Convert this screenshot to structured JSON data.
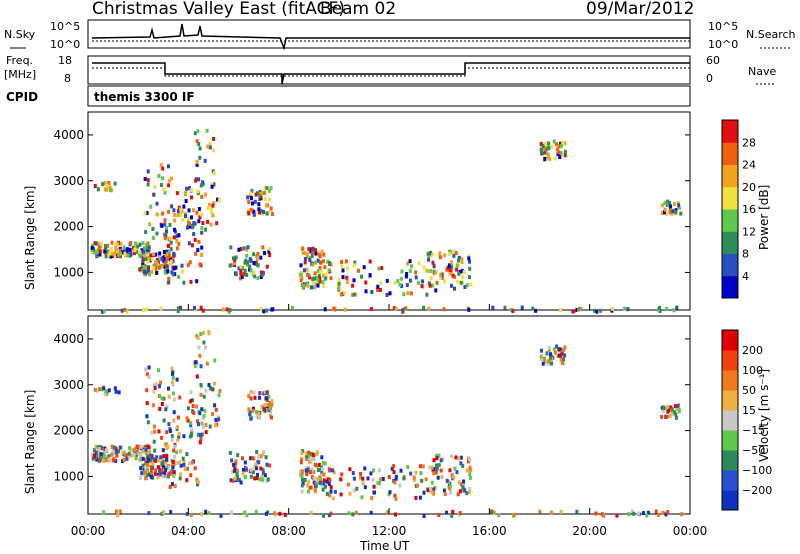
{
  "header": {
    "title": "Christmas Valley East (fitACF)",
    "beam": "Beam 02",
    "date": "09/Mar/2012"
  },
  "strips": {
    "nsky_label": "N.Sky",
    "nsky_ticks": [
      "10^5",
      "10^0"
    ],
    "nsearch_label": "N.Search",
    "nsearch_ticks": [
      "10^5",
      "10^0"
    ],
    "freq_label_1": "Freq.",
    "freq_label_2": "[MHz]",
    "freq_ticks": [
      "18",
      "8"
    ],
    "nave_label": "Nave",
    "nave_ticks": [
      "60",
      "0"
    ],
    "cpid_label": "CPID",
    "cpid_value": "themis 3300 IF"
  },
  "chart_data": [
    {
      "type": "heatmap",
      "title": "",
      "ylabel": "Slant Range [km]",
      "xlabel": "",
      "x_range_hours": [
        0,
        24
      ],
      "ylim": [
        180,
        4500
      ],
      "yticks": [
        "1000",
        "2000",
        "3000",
        "4000"
      ],
      "colorbar_label": "Power [dB]",
      "colorbar_ticks": [
        "4",
        "8",
        "12",
        "16",
        "20",
        "24",
        "28"
      ],
      "colorbar_colors": [
        "#0000c8",
        "#2a50c0",
        "#2e8c5a",
        "#60c84a",
        "#f0e040",
        "#f5a020",
        "#ee6010",
        "#e01010"
      ]
    },
    {
      "type": "heatmap",
      "title": "",
      "ylabel": "Slant Range [km]",
      "xlabel": "Time UT",
      "x_range_hours": [
        0,
        24
      ],
      "ylim": [
        180,
        4500
      ],
      "yticks": [
        "1000",
        "2000",
        "3000",
        "4000"
      ],
      "xticks": [
        "00:00",
        "04:00",
        "08:00",
        "12:00",
        "16:00",
        "20:00",
        "00:00"
      ],
      "colorbar_label": "Velocity [m s⁻¹]",
      "colorbar_ticks": [
        "200",
        "100",
        "50",
        "15",
        "−15",
        "−50",
        "−100",
        "−200"
      ],
      "colorbar_colors": [
        "#1030c0",
        "#2a50d0",
        "#2a8a5a",
        "#60c84a",
        "#c8c8c8",
        "#f0b040",
        "#f07820",
        "#f04010",
        "#e00000"
      ]
    }
  ]
}
